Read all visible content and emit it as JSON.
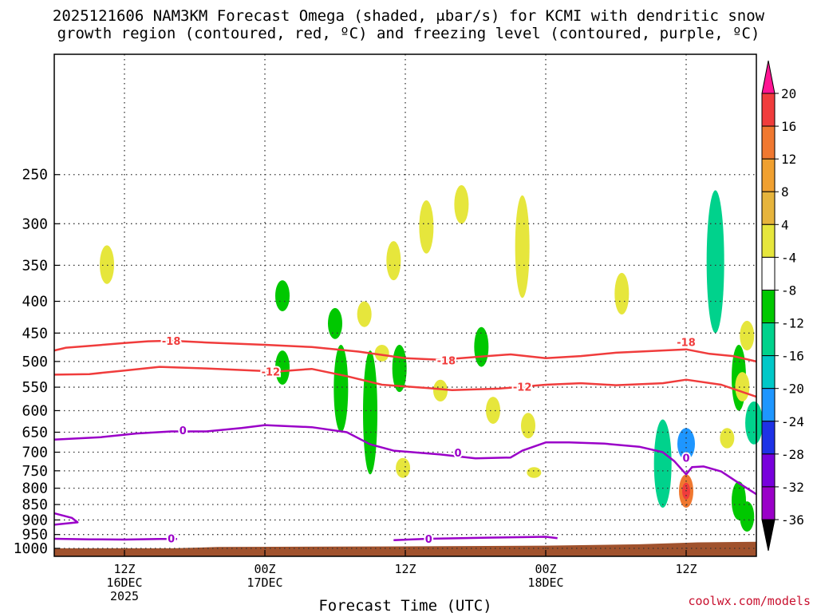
{
  "title": {
    "line1": "2025121606 NAM3KM Forecast Omega (shaded, μbar/s) for KCMI with dendritic snow",
    "line2": "growth region (contoured, red, ºC) and freezing level (contoured, purple, ºC)"
  },
  "chart_data": {
    "type": "heatmap",
    "title": "2025121606 NAM3KM Forecast Omega (shaded, μbar/s) for KCMI with dendritic snow growth region (contoured, red, ºC) and freezing level (contoured, purple, ºC)",
    "xlabel": "Forecast Time (UTC)",
    "ylabel": "",
    "x_unit": "forecast hour from 2025121606",
    "xlim": [
      0,
      60
    ],
    "ylim": [
      1030,
      160
    ],
    "y_scale": "log-pressure",
    "y_ticks": [
      250,
      300,
      350,
      400,
      450,
      500,
      550,
      600,
      650,
      700,
      750,
      800,
      850,
      900,
      950,
      1000
    ],
    "x_ticks": [
      {
        "hour": 6,
        "labels": [
          "12Z",
          "16DEC",
          "2025"
        ]
      },
      {
        "hour": 18,
        "labels": [
          "00Z",
          "17DEC"
        ]
      },
      {
        "hour": 30,
        "labels": [
          "12Z"
        ]
      },
      {
        "hour": 42,
        "labels": [
          "00Z",
          "18DEC"
        ]
      },
      {
        "hour": 54,
        "labels": [
          "12Z"
        ]
      }
    ],
    "grid": true,
    "colorbar": {
      "labels": [
        "20",
        "16",
        "12",
        "8",
        "4",
        "-4",
        "-8",
        "-12",
        "-16",
        "-20",
        "-24",
        "-28",
        "-32",
        "-36"
      ],
      "colors": [
        "#ff1493",
        "#f03c3c",
        "#f07830",
        "#f0a030",
        "#e6b43c",
        "#e6e63c",
        "#ffffff",
        "#00c800",
        "#00d28c",
        "#00c8c8",
        "#1e96ff",
        "#1e32e6",
        "#7800dc",
        "#9a00c8",
        "#a9a9a9",
        "#000000"
      ]
    },
    "series": [
      {
        "name": "-18 ºC",
        "color": "#f03c3c",
        "label": "-18",
        "label_positions": [
          [
            10,
            463
          ],
          [
            33.5,
            498
          ],
          [
            54,
            465
          ]
        ],
        "points": [
          [
            0,
            480
          ],
          [
            1,
            475
          ],
          [
            3,
            472
          ],
          [
            6,
            467
          ],
          [
            8,
            464
          ],
          [
            10,
            463
          ],
          [
            13,
            466
          ],
          [
            18,
            470
          ],
          [
            22,
            474
          ],
          [
            26,
            482
          ],
          [
            30,
            494
          ],
          [
            33,
            497
          ],
          [
            37,
            490
          ],
          [
            39,
            487
          ],
          [
            42,
            494
          ],
          [
            45,
            490
          ],
          [
            48,
            484
          ],
          [
            52,
            480
          ],
          [
            54,
            478
          ],
          [
            56,
            486
          ],
          [
            58,
            490
          ],
          [
            60,
            500
          ]
        ]
      },
      {
        "name": "-12 ºC",
        "color": "#f03c3c",
        "label": "-12",
        "label_positions": [
          [
            18.5,
            519
          ],
          [
            40,
            549
          ]
        ],
        "points": [
          [
            0,
            525
          ],
          [
            3,
            524
          ],
          [
            6,
            517
          ],
          [
            9,
            510
          ],
          [
            13,
            513
          ],
          [
            17,
            517
          ],
          [
            19,
            519
          ],
          [
            22,
            514
          ],
          [
            25,
            528
          ],
          [
            28,
            545
          ],
          [
            32,
            552
          ],
          [
            34,
            556
          ],
          [
            38,
            553
          ],
          [
            42,
            545
          ],
          [
            45,
            542
          ],
          [
            48,
            546
          ],
          [
            52,
            542
          ],
          [
            54,
            535
          ],
          [
            57,
            545
          ],
          [
            60,
            570
          ]
        ]
      },
      {
        "name": "0 ºC (freezing level)",
        "color": "#9a00c8",
        "label": "0",
        "label_positions": [
          [
            11,
            645
          ],
          [
            34.5,
            701
          ],
          [
            54,
            715
          ]
        ],
        "points": [
          [
            0,
            668
          ],
          [
            4,
            662
          ],
          [
            7,
            653
          ],
          [
            10,
            648
          ],
          [
            13,
            648
          ],
          [
            16,
            640
          ],
          [
            18,
            633
          ],
          [
            22,
            638
          ],
          [
            25,
            650
          ],
          [
            27,
            680
          ],
          [
            29,
            696
          ],
          [
            31,
            701
          ],
          [
            33,
            706
          ],
          [
            36,
            716
          ],
          [
            39,
            714
          ],
          [
            40,
            696
          ],
          [
            42,
            675
          ],
          [
            44,
            675
          ],
          [
            47,
            678
          ],
          [
            50,
            686
          ],
          [
            52,
            700
          ],
          [
            53,
            724
          ],
          [
            54,
            760
          ],
          [
            54.5,
            740
          ],
          [
            55.5,
            738
          ],
          [
            57,
            752
          ],
          [
            58.5,
            785
          ],
          [
            60,
            818
          ]
        ]
      },
      {
        "name": "0 ºC (near surface)",
        "color": "#9a00c8",
        "label": "0",
        "label_positions": [
          [
            10,
            963
          ],
          [
            32,
            965
          ]
        ],
        "points": [
          [
            0,
            965
          ],
          [
            3,
            967
          ],
          [
            6,
            968
          ],
          [
            9,
            966
          ],
          [
            10.5,
            966
          ]
        ]
      },
      {
        "name": "0 ºC (near surface, second segment)",
        "color": "#9a00c8",
        "label": "0",
        "points": [
          [
            29,
            970
          ],
          [
            32,
            965
          ],
          [
            37,
            961
          ],
          [
            42,
            958
          ],
          [
            43,
            963
          ]
        ]
      },
      {
        "name": "0 ºC (low-level loop)",
        "color": "#9a00c8",
        "label": "",
        "points": [
          [
            0,
            878
          ],
          [
            1.5,
            893
          ],
          [
            2,
            908
          ],
          [
            0,
            916
          ]
        ]
      }
    ],
    "omega_cells": [
      {
        "hour": 4.5,
        "p_top": 325,
        "p_bottom": 375,
        "value": 5
      },
      {
        "hour": 19.5,
        "p_top": 370,
        "p_bottom": 415,
        "value": -6
      },
      {
        "hour": 19.5,
        "p_top": 480,
        "p_bottom": 545,
        "value": -6
      },
      {
        "hour": 24.0,
        "p_top": 410,
        "p_bottom": 460,
        "value": -6
      },
      {
        "hour": 26.5,
        "p_top": 400,
        "p_bottom": 440,
        "value": 5
      },
      {
        "hour": 24.5,
        "p_top": 470,
        "p_bottom": 650,
        "value": -6
      },
      {
        "hour": 27.0,
        "p_top": 480,
        "p_bottom": 760,
        "value": -6
      },
      {
        "hour": 29.0,
        "p_top": 320,
        "p_bottom": 370,
        "value": 5
      },
      {
        "hour": 28.0,
        "p_top": 470,
        "p_bottom": 500,
        "value": 5
      },
      {
        "hour": 29.5,
        "p_top": 470,
        "p_bottom": 560,
        "value": -6
      },
      {
        "hour": 29.8,
        "p_top": 715,
        "p_bottom": 770,
        "value": 5
      },
      {
        "hour": 31.8,
        "p_top": 275,
        "p_bottom": 335,
        "value": 5
      },
      {
        "hour": 33.0,
        "p_top": 535,
        "p_bottom": 580,
        "value": 5
      },
      {
        "hour": 34.8,
        "p_top": 260,
        "p_bottom": 300,
        "value": 5
      },
      {
        "hour": 36.5,
        "p_top": 440,
        "p_bottom": 510,
        "value": -6
      },
      {
        "hour": 37.5,
        "p_top": 570,
        "p_bottom": 630,
        "value": 5
      },
      {
        "hour": 40.0,
        "p_top": 270,
        "p_bottom": 395,
        "value": 5
      },
      {
        "hour": 40.5,
        "p_top": 605,
        "p_bottom": 665,
        "value": 5
      },
      {
        "hour": 41.0,
        "p_top": 740,
        "p_bottom": 770,
        "value": 5
      },
      {
        "hour": 48.5,
        "p_top": 360,
        "p_bottom": 420,
        "value": 5
      },
      {
        "hour": 52.0,
        "p_top": 620,
        "p_bottom": 860,
        "value": -10
      },
      {
        "hour": 54.0,
        "p_top": 640,
        "p_bottom": 720,
        "value": -18
      },
      {
        "hour": 54.0,
        "p_top": 760,
        "p_bottom": 860,
        "value": 12
      },
      {
        "hour": 56.5,
        "p_top": 265,
        "p_bottom": 450,
        "value": -10
      },
      {
        "hour": 57.5,
        "p_top": 640,
        "p_bottom": 690,
        "value": 5
      },
      {
        "hour": 58.5,
        "p_top": 470,
        "p_bottom": 600,
        "value": -6
      },
      {
        "hour": 58.8,
        "p_top": 520,
        "p_bottom": 580,
        "value": 5
      },
      {
        "hour": 59.2,
        "p_top": 430,
        "p_bottom": 480,
        "value": 5
      },
      {
        "hour": 59.8,
        "p_top": 580,
        "p_bottom": 680,
        "value": -10
      },
      {
        "hour": 58.5,
        "p_top": 780,
        "p_bottom": 900,
        "value": -6
      },
      {
        "hour": 59.2,
        "p_top": 840,
        "p_bottom": 940,
        "value": -6
      }
    ]
  },
  "footer": {
    "site": "coolwx.com/models",
    "xaxis_title": "Forecast Time (UTC)"
  }
}
